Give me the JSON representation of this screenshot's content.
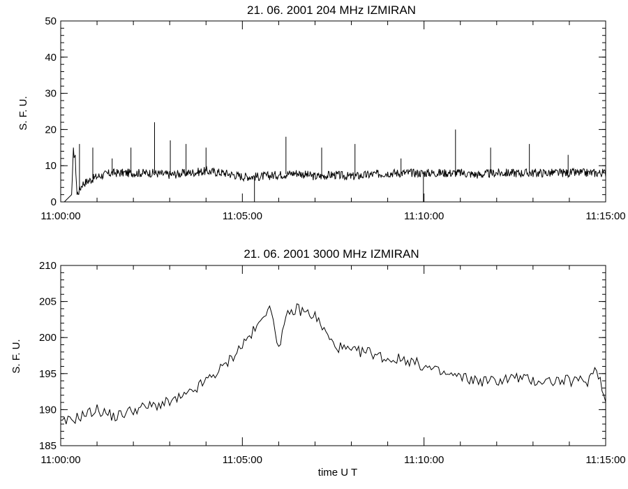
{
  "chart_data": [
    {
      "type": "line",
      "title": "21.  06.  2001    204  MHz    IZMIRAN",
      "ylabel": "S.  F.  U.",
      "xlabel": "",
      "xlim": [
        "11:00:00",
        "11:15:00"
      ],
      "ylim": [
        0,
        50
      ],
      "x_ticks": [
        "11:00:00",
        "11:05:00",
        "11:10:00",
        "11:15:00"
      ],
      "y_ticks": [
        "0",
        "10",
        "20",
        "30",
        "40",
        "50"
      ],
      "grid": false,
      "series": [
        {
          "x_seconds_after_11_00_00": [
            0,
            6,
            12,
            18,
            21,
            24,
            27,
            30,
            33,
            36,
            42,
            48,
            60,
            72,
            84,
            96,
            108,
            120,
            150,
            180,
            210,
            240,
            270,
            300,
            330,
            360,
            390,
            420,
            450,
            480,
            510,
            540,
            570,
            600,
            630,
            660,
            690,
            720,
            750,
            780,
            810,
            840,
            870,
            900
          ],
          "values": [
            0,
            0,
            1,
            2,
            14,
            12,
            2,
            3,
            4,
            5,
            5.5,
            6,
            7,
            7.5,
            8,
            8,
            8,
            8,
            8,
            7.5,
            8,
            8.5,
            8,
            7,
            7,
            7.5,
            8,
            7,
            7.5,
            7,
            7.5,
            8,
            8,
            8,
            8,
            8,
            7.5,
            8,
            8,
            8,
            8,
            8,
            8,
            8
          ]
        },
        {
          "spikes_seconds_after_11_00_00": [
            31,
            53,
            85,
            116,
            155,
            181,
            207,
            240,
            320,
            372,
            431,
            486,
            562,
            599,
            652,
            710,
            774,
            838
          ],
          "spike_values": [
            16,
            15,
            12,
            15,
            22,
            17,
            16,
            15,
            0,
            18,
            15,
            16,
            12,
            0,
            20,
            15,
            16,
            13
          ]
        }
      ]
    },
    {
      "type": "line",
      "title": "21.  06.  2001    3000  MHz    IZMIRAN",
      "ylabel": "S.  F.  U.",
      "xlabel": "time   U T",
      "xlim": [
        "11:00:00",
        "11:15:00"
      ],
      "ylim": [
        185,
        210
      ],
      "x_ticks": [
        "11:00:00",
        "11:05:00",
        "11:10:00",
        "11:15:00"
      ],
      "y_ticks": [
        "185",
        "190",
        "195",
        "200",
        "205",
        "210"
      ],
      "grid": false,
      "series": [
        {
          "x_seconds_after_11_00_00": [
            0,
            30,
            60,
            90,
            120,
            150,
            180,
            210,
            240,
            270,
            300,
            330,
            345,
            350,
            360,
            375,
            390,
            420,
            450,
            480,
            510,
            540,
            570,
            600,
            630,
            660,
            690,
            720,
            750,
            780,
            810,
            840,
            870,
            885,
            900
          ],
          "values": [
            188,
            189,
            190,
            189,
            190,
            190.5,
            191,
            192,
            194,
            196,
            199,
            202,
            205,
            202,
            199,
            203,
            204,
            203,
            199,
            198,
            198,
            197,
            197,
            196,
            195,
            194.5,
            194,
            194,
            194.5,
            194,
            194,
            194,
            194,
            196,
            191
          ]
        }
      ]
    }
  ]
}
